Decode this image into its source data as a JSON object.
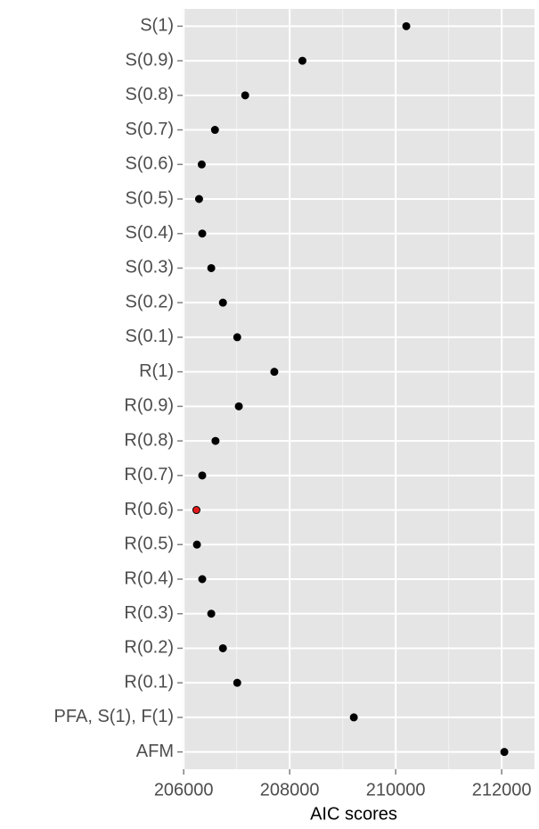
{
  "chart_data": {
    "type": "dot",
    "x_label": "AIC scores",
    "categories": [
      "S(1)",
      "S(0.9)",
      "S(0.8)",
      "S(0.7)",
      "S(0.6)",
      "S(0.5)",
      "S(0.4)",
      "S(0.3)",
      "S(0.2)",
      "S(0.1)",
      "R(1)",
      "R(0.9)",
      "R(0.8)",
      "R(0.7)",
      "R(0.6)",
      "R(0.5)",
      "R(0.4)",
      "R(0.3)",
      "R(0.2)",
      "R(0.1)",
      "PFA, S(1), F(1)",
      "AFM"
    ],
    "values": [
      210200,
      208240,
      207160,
      206590,
      206340,
      206290,
      206350,
      206520,
      206740,
      207010,
      207710,
      207040,
      206600,
      206350,
      206240,
      206250,
      206350,
      206520,
      206740,
      207010,
      209210,
      212050
    ],
    "colors": [
      "#000000",
      "#000000",
      "#000000",
      "#000000",
      "#000000",
      "#000000",
      "#000000",
      "#000000",
      "#000000",
      "#000000",
      "#000000",
      "#000000",
      "#000000",
      "#000000",
      "#e31a1c",
      "#000000",
      "#000000",
      "#000000",
      "#000000",
      "#000000",
      "#000000",
      "#000000"
    ],
    "xlim": [
      205980,
      212620
    ],
    "xticks": [
      206000,
      208000,
      210000,
      212000
    ],
    "minor_xticks": [
      207000,
      209000,
      211000
    ],
    "grid": true
  }
}
